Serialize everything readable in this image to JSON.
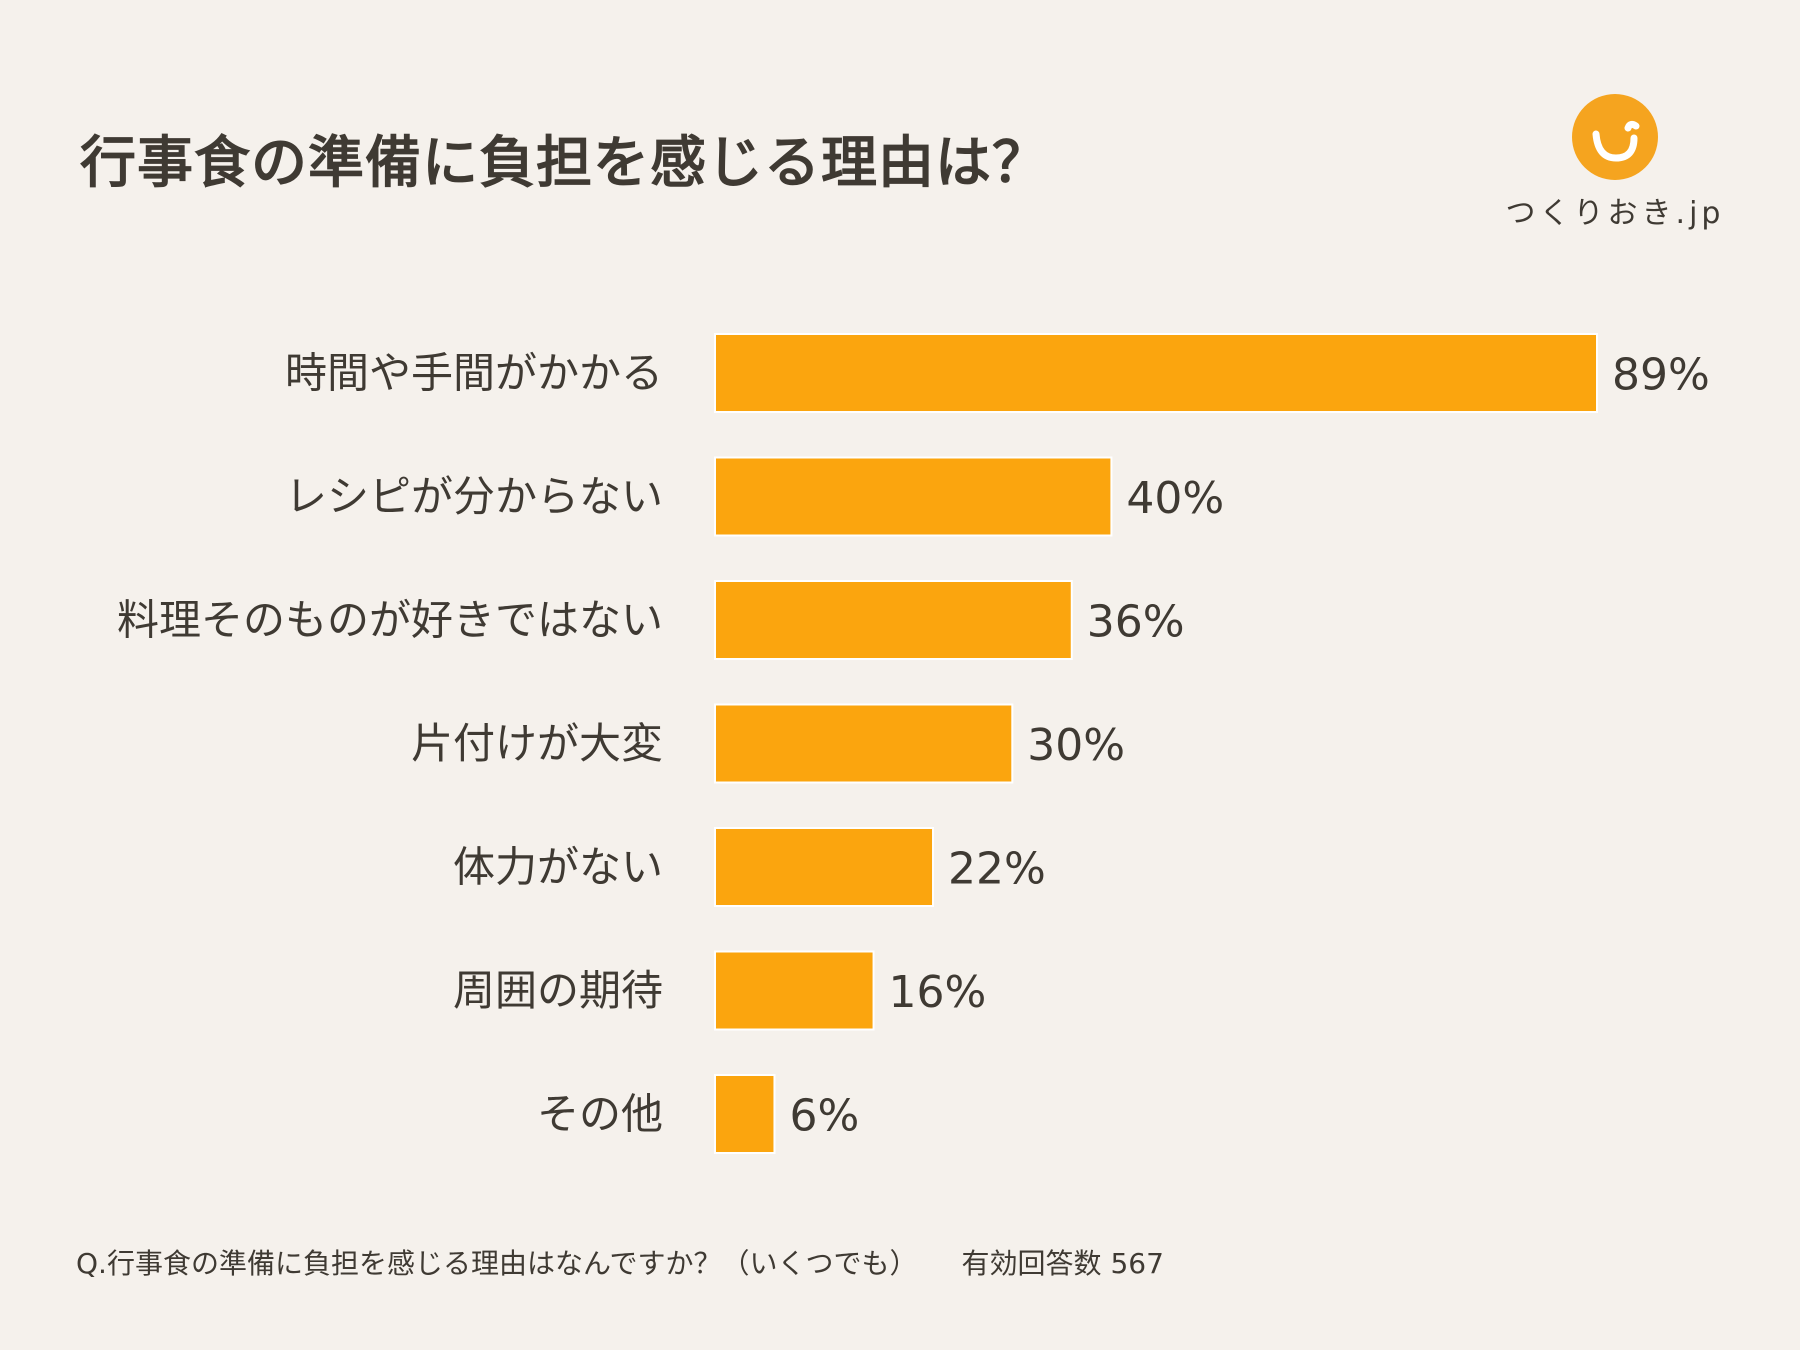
{
  "header": {
    "title": "行事食の準備に負担を感じる理由は？"
  },
  "logo": {
    "text": "つくりおき.jp",
    "color": "#f5a41f"
  },
  "chart_data": {
    "type": "bar",
    "orientation": "horizontal",
    "title": "行事食の準備に負担を感じる理由は？",
    "categories": [
      "時間や手間がかかる",
      "レシピが分からない",
      "料理そのものが好きではない",
      "片付けが大変",
      "体力がない",
      "周囲の期待",
      "その他"
    ],
    "values": [
      89,
      40,
      36,
      30,
      22,
      16,
      6
    ],
    "value_labels": [
      "89%",
      "40%",
      "36%",
      "30%",
      "22%",
      "16%",
      "6%"
    ],
    "unit": "%",
    "xlim": [
      0,
      89
    ],
    "xlabel": "",
    "ylabel": "",
    "grid": false,
    "bar_color": "#fba50e"
  },
  "footer": {
    "question": "Q.行事食の準備に負担を感じる理由はなんですか？（いくつでも）",
    "responses": "有効回答数 567"
  }
}
